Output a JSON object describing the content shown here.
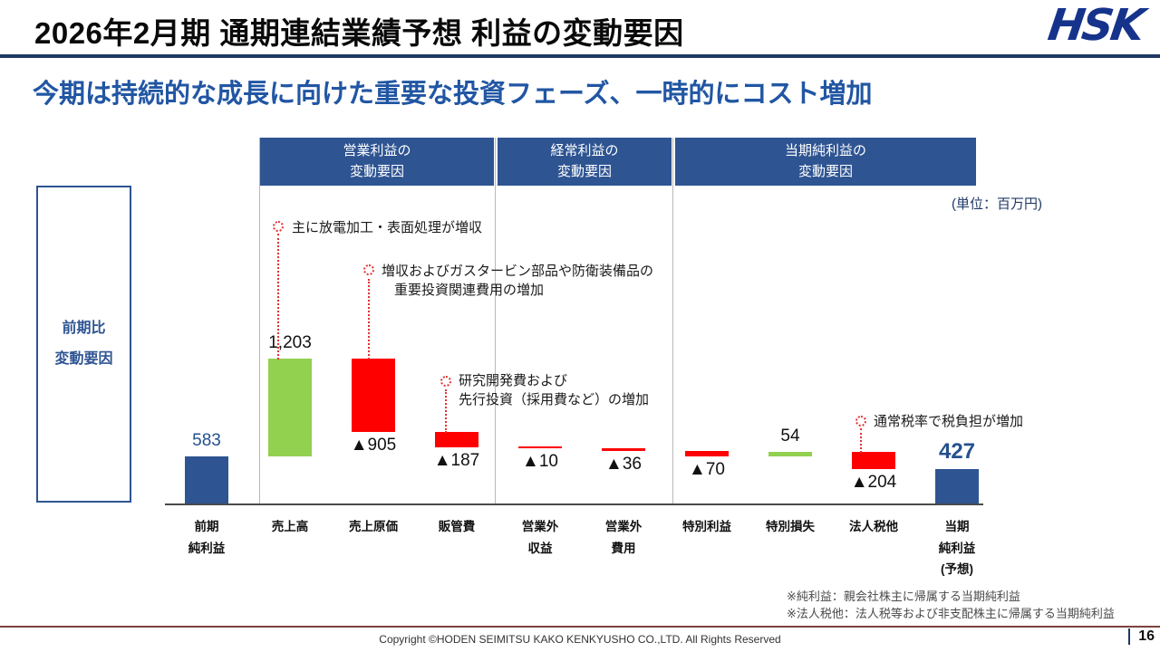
{
  "header": {
    "title": "2026年2月期 通期連結業績予想 利益の変動要因",
    "logo_text": "HSK"
  },
  "subtitle": "今期は持続的な成長に向けた重要な投資フェーズ、一時的にコスト増加",
  "section_headers": [
    {
      "line1": "営業利益の",
      "line2": "変動要因"
    },
    {
      "line1": "経常利益の",
      "line2": "変動要因"
    },
    {
      "line1": "当期純利益の",
      "line2": "変動要因"
    }
  ],
  "unit_label": "(単位：百万円)",
  "side_label": {
    "line1": "前期比",
    "line2": "変動要因"
  },
  "annotations": [
    {
      "lines": [
        "主に放電加工・表面処理が増収"
      ]
    },
    {
      "lines": [
        "増収およびガスタービン部品や防衛装備品の",
        "重要投資関連費用の増加"
      ]
    },
    {
      "lines": [
        "研究開発費および",
        "先行投資（採用費など）の増加"
      ]
    },
    {
      "lines": [
        "通常税率で税負担が増加"
      ]
    }
  ],
  "footnotes": [
    "※純利益：親会社株主に帰属する当期純利益",
    "※法人税他：法人税等および非支配株主に帰属する当期純利益"
  ],
  "footer": {
    "copyright": "Copyright ©HODEN SEIMITSU KAKO KENKYUSHO CO.,LTD. All Rights Reserved",
    "page": "16"
  },
  "chart_data": {
    "type": "bar",
    "subtype": "waterfall",
    "title": "2026年2月期 通期連結業績予想 利益の変動要因",
    "unit": "百万円",
    "colors": {
      "navy": "#2E5492",
      "green": "#92D050",
      "red": "#FF0000"
    },
    "items": [
      {
        "label_lines": [
          "前期",
          "純利益"
        ],
        "value": 583,
        "kind": "total",
        "display": "583",
        "value_pos": "above",
        "color": "navy",
        "value_color": "navy"
      },
      {
        "label_lines": [
          "売上高"
        ],
        "value": 1203,
        "kind": "delta",
        "display": "1,203",
        "value_pos": "above",
        "color": "green",
        "value_color": "black"
      },
      {
        "label_lines": [
          "売上原価"
        ],
        "value": -905,
        "kind": "delta",
        "display": "▲905",
        "value_pos": "below",
        "color": "red",
        "value_color": "black"
      },
      {
        "label_lines": [
          "販管費"
        ],
        "value": -187,
        "kind": "delta",
        "display": "▲187",
        "value_pos": "below",
        "color": "red",
        "value_color": "black"
      },
      {
        "label_lines": [
          "営業外",
          "収益"
        ],
        "value": -10,
        "kind": "delta",
        "display": "▲10",
        "value_pos": "below",
        "color": "red",
        "value_color": "black"
      },
      {
        "label_lines": [
          "営業外",
          "費用"
        ],
        "value": -36,
        "kind": "delta",
        "display": "▲36",
        "value_pos": "below",
        "color": "red",
        "value_color": "black"
      },
      {
        "label_lines": [
          "特別利益"
        ],
        "value": -70,
        "kind": "delta",
        "display": "▲70",
        "value_pos": "below",
        "color": "red",
        "value_color": "black"
      },
      {
        "label_lines": [
          "特別損失"
        ],
        "value": 54,
        "kind": "delta",
        "display": "54",
        "value_pos": "above",
        "color": "green",
        "value_color": "black"
      },
      {
        "label_lines": [
          "法人税他"
        ],
        "value": -204,
        "kind": "delta",
        "display": "▲204",
        "value_pos": "below",
        "color": "red",
        "value_color": "black"
      },
      {
        "label_lines": [
          "当期",
          "純利益",
          "(予想)"
        ],
        "value": 427,
        "kind": "total",
        "display": "427",
        "value_pos": "above",
        "color": "navy",
        "value_color": "navy",
        "emphasis": true
      }
    ]
  }
}
